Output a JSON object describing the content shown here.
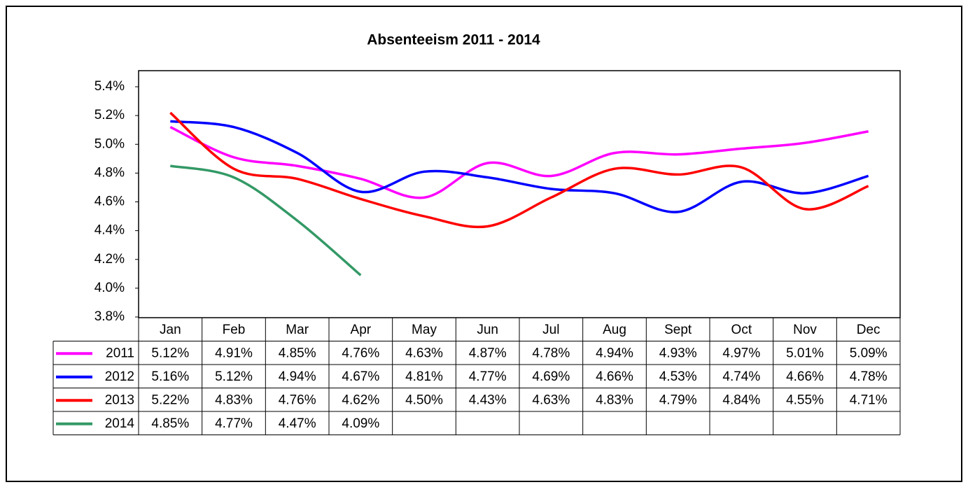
{
  "chart_data": {
    "type": "line",
    "title": "Absenteeism 2011 - 2014",
    "categories": [
      "Jan",
      "Feb",
      "Mar",
      "Apr",
      "May",
      "Jun",
      "Jul",
      "Aug",
      "Sept",
      "Oct",
      "Nov",
      "Dec"
    ],
    "series": [
      {
        "name": "2011",
        "color": "#ff00ff",
        "values": [
          5.12,
          4.91,
          4.85,
          4.76,
          4.63,
          4.87,
          4.78,
          4.94,
          4.93,
          4.97,
          5.01,
          5.09
        ],
        "value_labels": [
          "5.12%",
          "4.91%",
          "4.85%",
          "4.76%",
          "4.63%",
          "4.87%",
          "4.78%",
          "4.94%",
          "4.93%",
          "4.97%",
          "5.01%",
          "5.09%"
        ]
      },
      {
        "name": "2012",
        "color": "#0000ff",
        "values": [
          5.16,
          5.12,
          4.94,
          4.67,
          4.81,
          4.77,
          4.69,
          4.66,
          4.53,
          4.74,
          4.66,
          4.78
        ],
        "value_labels": [
          "5.16%",
          "5.12%",
          "4.94%",
          "4.67%",
          "4.81%",
          "4.77%",
          "4.69%",
          "4.66%",
          "4.53%",
          "4.74%",
          "4.66%",
          "4.78%"
        ]
      },
      {
        "name": "2013",
        "color": "#ff0000",
        "values": [
          5.22,
          4.83,
          4.76,
          4.62,
          4.5,
          4.43,
          4.63,
          4.83,
          4.79,
          4.84,
          4.55,
          4.71
        ],
        "value_labels": [
          "5.22%",
          "4.83%",
          "4.76%",
          "4.62%",
          "4.50%",
          "4.43%",
          "4.63%",
          "4.83%",
          "4.79%",
          "4.84%",
          "4.55%",
          "4.71%"
        ]
      },
      {
        "name": "2014",
        "color": "#339966",
        "values": [
          4.85,
          4.77,
          4.47,
          4.09,
          null,
          null,
          null,
          null,
          null,
          null,
          null,
          null
        ],
        "value_labels": [
          "4.85%",
          "4.77%",
          "4.47%",
          "4.09%",
          null,
          null,
          null,
          null,
          null,
          null,
          null,
          null
        ]
      }
    ],
    "ylim": [
      3.8,
      5.4
    ],
    "yticks": [
      {
        "value": 3.8,
        "label": "3.8%"
      },
      {
        "value": 4.0,
        "label": "4.0%"
      },
      {
        "value": 4.2,
        "label": "4.2%"
      },
      {
        "value": 4.4,
        "label": "4.4%"
      },
      {
        "value": 4.6,
        "label": "4.6%"
      },
      {
        "value": 4.8,
        "label": "4.8%"
      },
      {
        "value": 5.0,
        "label": "5.0%"
      },
      {
        "value": 5.2,
        "label": "5.2%"
      },
      {
        "value": 5.4,
        "label": "5.4%"
      }
    ],
    "grid": false
  }
}
